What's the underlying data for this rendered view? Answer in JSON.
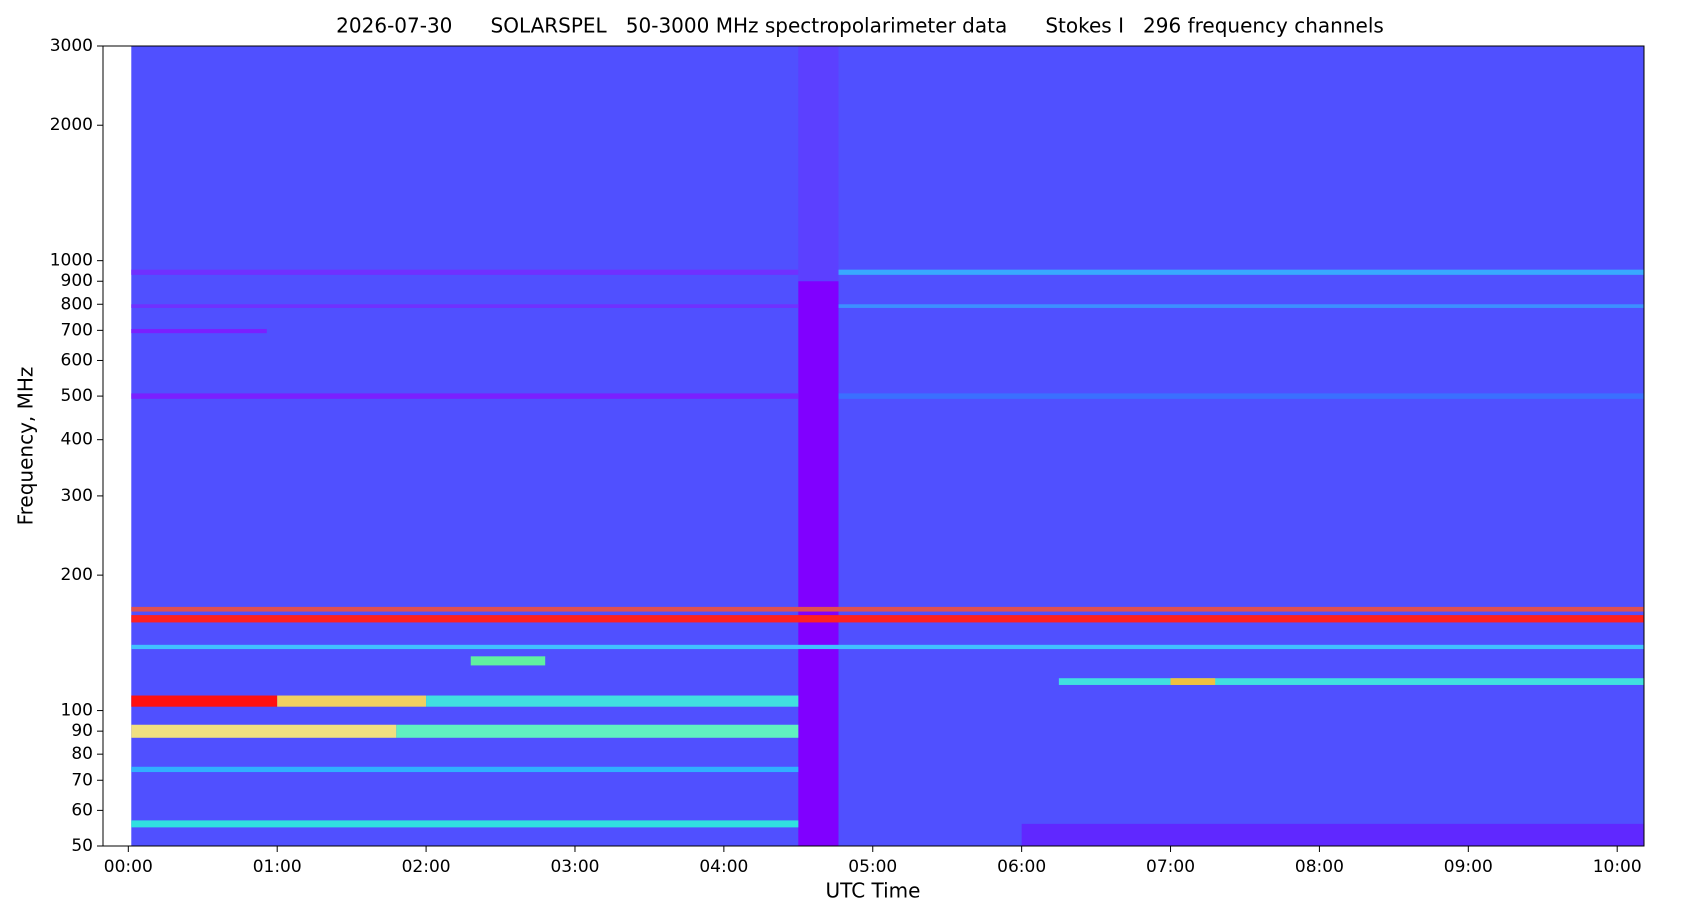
{
  "chart_data": {
    "type": "spectrogram",
    "title": "2026-07-30      SOLARSPEL   50-3000 MHz spectropolarimeter data      Stokes I   296 frequency channels",
    "x_label": "UTC Time",
    "y_label": "Frequency, MHz",
    "log_y": true,
    "xlim": [
      -0.17,
      10.18
    ],
    "ylim": [
      50,
      3000
    ],
    "xticks": [
      {
        "value": 0,
        "label": "00:00"
      },
      {
        "value": 1,
        "label": "01:00"
      },
      {
        "value": 2,
        "label": "02:00"
      },
      {
        "value": 3,
        "label": "03:00"
      },
      {
        "value": 4,
        "label": "04:00"
      },
      {
        "value": 5,
        "label": "05:00"
      },
      {
        "value": 6,
        "label": "06:00"
      },
      {
        "value": 7,
        "label": "07:00"
      },
      {
        "value": 8,
        "label": "08:00"
      },
      {
        "value": 9,
        "label": "09:00"
      },
      {
        "value": 10,
        "label": "10:00"
      }
    ],
    "yticks": [
      50,
      60,
      70,
      80,
      90,
      100,
      200,
      300,
      400,
      500,
      600,
      700,
      800,
      900,
      1000,
      2000,
      3000
    ],
    "bands": [
      {
        "t": [
          0.02,
          10.18
        ],
        "f": [
          50,
          3000
        ],
        "color": "#5050ff"
      },
      {
        "t": [
          6.0,
          10.18
        ],
        "f": [
          50,
          56
        ],
        "color": "#6028ff"
      },
      {
        "t": [
          4.5,
          4.77
        ],
        "f": [
          900,
          3000
        ],
        "color": "#5c40ff"
      },
      {
        "t": [
          4.5,
          4.77
        ],
        "f": [
          50,
          900
        ],
        "color": "#8000ff"
      },
      {
        "t": [
          0.02,
          4.5
        ],
        "f": [
          930,
          955
        ],
        "color": "#7030ff"
      },
      {
        "t": [
          4.77,
          10.18
        ],
        "f": [
          930,
          955
        ],
        "color": "#38a8ff"
      },
      {
        "t": [
          0.02,
          4.5
        ],
        "f": [
          785,
          800
        ],
        "color": "#7030ff"
      },
      {
        "t": [
          4.77,
          10.18
        ],
        "f": [
          785,
          800
        ],
        "color": "#3c90ff"
      },
      {
        "t": [
          0.02,
          0.93
        ],
        "f": [
          690,
          705
        ],
        "color": "#7a20ff"
      },
      {
        "t": [
          0.02,
          4.5
        ],
        "f": [
          493,
          507
        ],
        "color": "#7a20ff"
      },
      {
        "t": [
          4.77,
          10.18
        ],
        "f": [
          493,
          507
        ],
        "color": "#3a70ff"
      },
      {
        "t": [
          0.02,
          10.18
        ],
        "f": [
          166,
          170
        ],
        "color": "#e05050"
      },
      {
        "t": [
          0.02,
          10.18
        ],
        "f": [
          157,
          163
        ],
        "color": "#ff2020"
      },
      {
        "t": [
          0.02,
          10.18
        ],
        "f": [
          137,
          140
        ],
        "color": "#40c0ff"
      },
      {
        "t": [
          2.3,
          2.8
        ],
        "f": [
          126,
          132
        ],
        "color": "#60f0a0"
      },
      {
        "t": [
          6.25,
          10.18
        ],
        "f": [
          114,
          118
        ],
        "color": "#40e0e0"
      },
      {
        "t": [
          7.0,
          7.3
        ],
        "f": [
          114,
          118
        ],
        "color": "#f0c040"
      },
      {
        "t": [
          0.02,
          1.0
        ],
        "f": [
          102,
          108
        ],
        "color": "#ff1010"
      },
      {
        "t": [
          1.0,
          2.0
        ],
        "f": [
          102,
          108
        ],
        "color": "#f0d060"
      },
      {
        "t": [
          2.0,
          4.5
        ],
        "f": [
          102,
          108
        ],
        "color": "#40e0e0"
      },
      {
        "t": [
          0.02,
          1.8
        ],
        "f": [
          87,
          93
        ],
        "color": "#f0e080"
      },
      {
        "t": [
          1.8,
          4.5
        ],
        "f": [
          87,
          93
        ],
        "color": "#60f0c0"
      },
      {
        "t": [
          0.02,
          4.5
        ],
        "f": [
          73,
          75
        ],
        "color": "#30b0ff"
      },
      {
        "t": [
          0.02,
          4.5
        ],
        "f": [
          55,
          57
        ],
        "color": "#30e0e0"
      }
    ]
  }
}
